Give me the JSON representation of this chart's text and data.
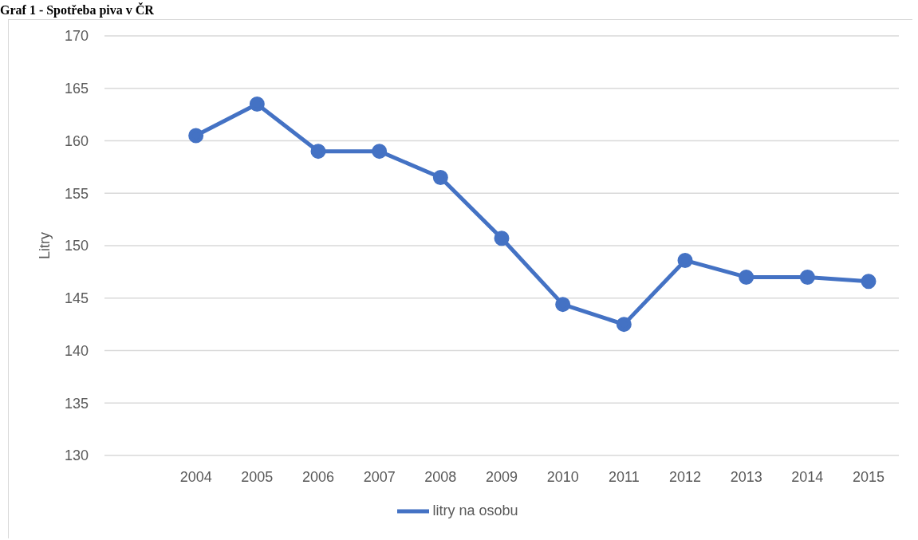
{
  "chart_data": {
    "type": "line",
    "title": "Graf 1 - Spotřeba piva v ČR",
    "ylabel": "Litry",
    "categories": [
      null,
      "2004",
      "2005",
      "2006",
      "2007",
      "2008",
      "2009",
      "2010",
      "2011",
      "2012",
      "2013",
      "2014",
      "2015"
    ],
    "series": [
      {
        "name": "litry na osobu",
        "color": "#4472c4",
        "values": [
          null,
          160.5,
          163.5,
          159.0,
          159.0,
          156.5,
          150.7,
          144.4,
          142.5,
          148.6,
          147.0,
          147.0,
          146.6
        ]
      }
    ],
    "ylim": [
      130,
      170
    ],
    "yticks": [
      130,
      135,
      140,
      145,
      150,
      155,
      160,
      165,
      170
    ],
    "grid": "y",
    "legend": "bottom",
    "marker": "circle",
    "line_style": "solid"
  }
}
